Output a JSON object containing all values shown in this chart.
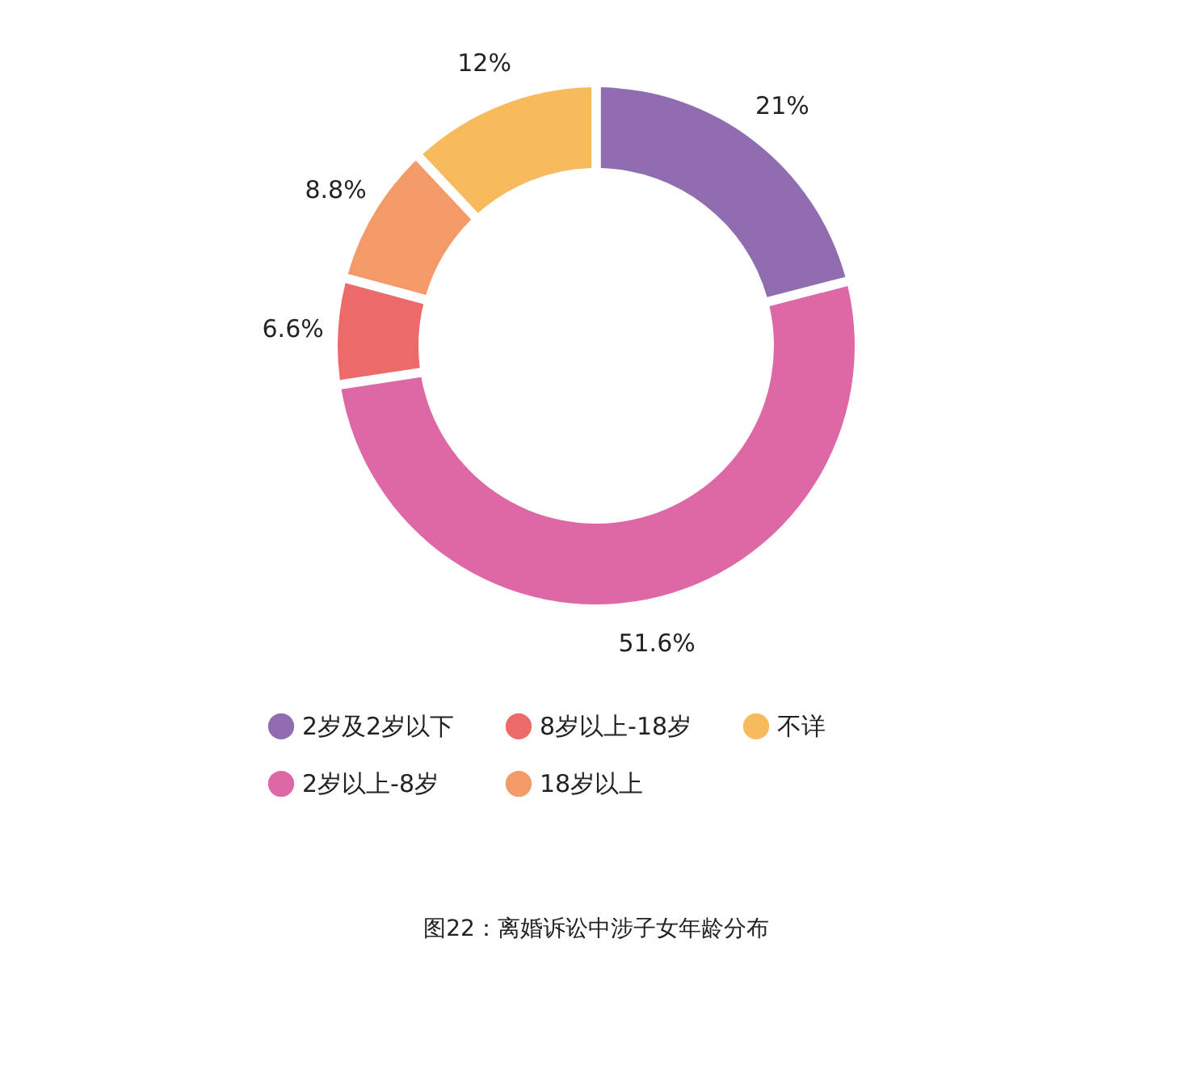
{
  "chart_data": {
    "type": "donut",
    "categories": [
      "2岁及2岁以下",
      "2岁以上-8岁",
      "8岁以上-18岁",
      "18岁以上",
      "不详"
    ],
    "values": [
      21,
      51.6,
      6.6,
      8.8,
      12
    ],
    "colors": [
      "#8f6db0",
      "#de68a6",
      "#ec6a6a",
      "#f39a68",
      "#f7bb5e"
    ],
    "value_labels": [
      "21%",
      "51.6%",
      "6.6%",
      "8.8%",
      "12%"
    ],
    "legend": "bottom",
    "annotations": [
      "图22：离婚诉讼中涉子女年龄分布"
    ]
  }
}
